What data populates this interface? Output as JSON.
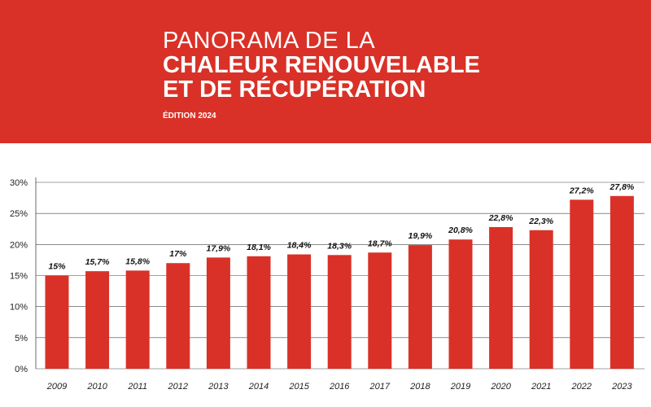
{
  "header": {
    "title_line1": "PANORAMA DE LA",
    "title_line2": "CHALEUR RENOUVELABLE",
    "title_line3": "ET DE RÉCUPÉRATION",
    "edition": "ÉDITION 2024"
  },
  "colors": {
    "banner": "#d93127",
    "bar": "#d93127",
    "grid": "#444444"
  },
  "chart_data": {
    "type": "bar",
    "categories": [
      "2009",
      "2010",
      "2011",
      "2012",
      "2013",
      "2014",
      "2015",
      "2016",
      "2017",
      "2018",
      "2019",
      "2020",
      "2021",
      "2022",
      "2023"
    ],
    "values": [
      15,
      15.7,
      15.8,
      17,
      17.9,
      18.1,
      18.4,
      18.3,
      18.7,
      19.9,
      20.8,
      22.8,
      22.3,
      27.2,
      27.8
    ],
    "data_labels": [
      "15%",
      "15,7%",
      "15,8%",
      "17%",
      "17,9%",
      "18,1%",
      "18,4%",
      "18,3%",
      "18,7%",
      "19,9%",
      "20,8%",
      "22,8%",
      "22,3%",
      "27,2%",
      "27,8%"
    ],
    "yticks": [
      0,
      5,
      10,
      15,
      20,
      25,
      30
    ],
    "ytick_labels": [
      "0%",
      "5%",
      "10%",
      "15%",
      "20%",
      "25%",
      "30%"
    ],
    "ylim": [
      0,
      30
    ],
    "grid": true,
    "title": "",
    "xlabel": "",
    "ylabel": ""
  }
}
